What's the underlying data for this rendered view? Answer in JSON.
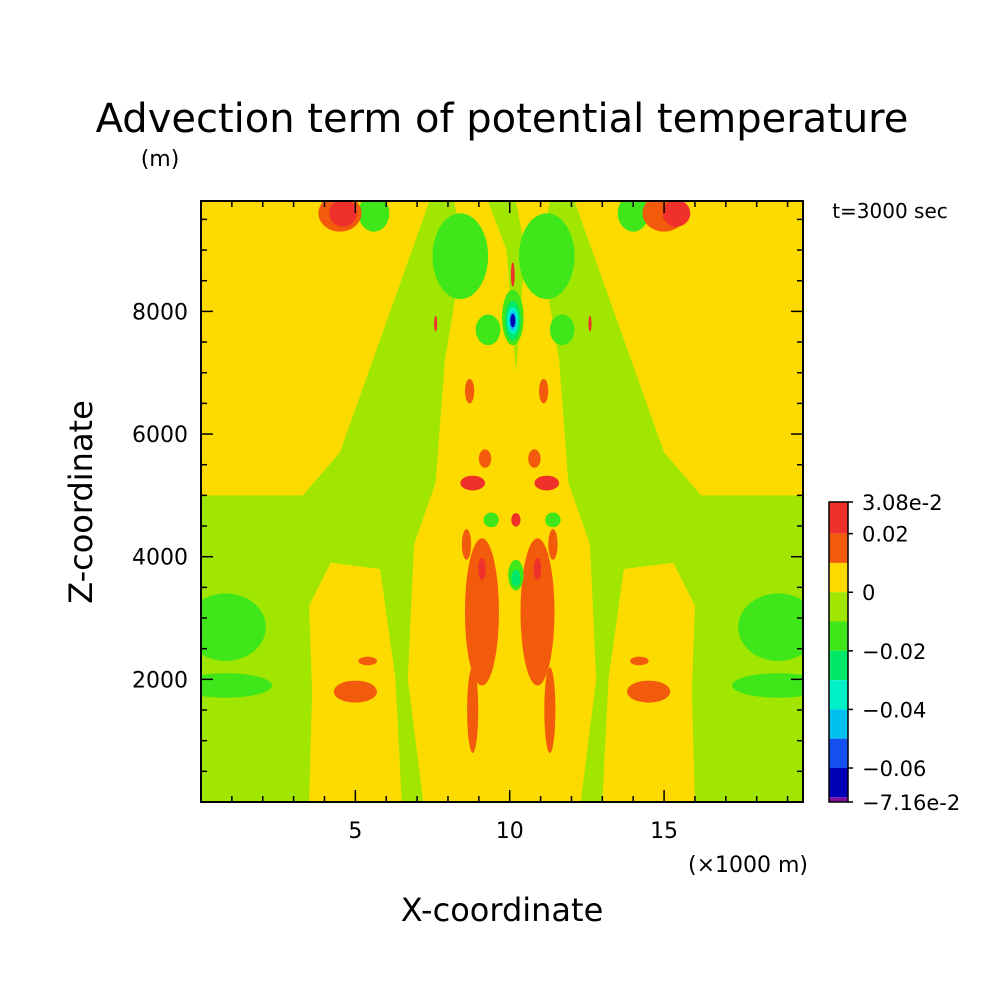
{
  "chart_data": {
    "type": "heatmap",
    "title": "Advection term of potential temperature",
    "xlabel": "X-coordinate",
    "ylabel": "Z-coordinate",
    "x_unit_label": "(×1000 m)",
    "y_unit_label": "(m)",
    "annotation": "t=3000 sec",
    "xlim": [
      0,
      19.5
    ],
    "ylim": [
      0,
      9800
    ],
    "x_ticks": [
      5,
      10,
      15
    ],
    "x_tick_labels": [
      "5",
      "10",
      "15"
    ],
    "y_ticks": [
      2000,
      4000,
      6000,
      8000
    ],
    "y_tick_labels": [
      "2000",
      "4000",
      "6000",
      "8000"
    ],
    "colorbar": {
      "max_label": "3.08e-2",
      "min_label": "−7.16e-2",
      "max": 0.0308,
      "min": -0.0716,
      "bins": [
        {
          "lo": 0.02,
          "hi": 0.0308,
          "color": "#f0302a"
        },
        {
          "lo": 0.01,
          "hi": 0.02,
          "color": "#f25a0c"
        },
        {
          "lo": 0.0,
          "hi": 0.01,
          "color": "#fedb00"
        },
        {
          "lo": -0.01,
          "hi": 0.0,
          "color": "#a0e600"
        },
        {
          "lo": -0.02,
          "hi": -0.01,
          "color": "#3ee61a"
        },
        {
          "lo": -0.03,
          "hi": -0.02,
          "color": "#00e868"
        },
        {
          "lo": -0.04,
          "hi": -0.03,
          "color": "#00f0c8"
        },
        {
          "lo": -0.05,
          "hi": -0.04,
          "color": "#00c0f0"
        },
        {
          "lo": -0.06,
          "hi": -0.05,
          "color": "#1450f0"
        },
        {
          "lo": -0.07,
          "hi": -0.06,
          "color": "#0000b4"
        },
        {
          "lo": -0.0716,
          "hi": -0.07,
          "color": "#8010a0"
        }
      ],
      "labels": [
        {
          "value": 0.0308,
          "text": "3.08e-2"
        },
        {
          "value": 0.02,
          "text": "0.02"
        },
        {
          "value": 0.0,
          "text": "0"
        },
        {
          "value": -0.02,
          "text": "−0.02"
        },
        {
          "value": -0.04,
          "text": "−0.04"
        },
        {
          "value": -0.06,
          "text": "−0.06"
        },
        {
          "value": -0.0716,
          "text": "−7.16e-2"
        }
      ]
    },
    "field_features": [
      {
        "kind": "background",
        "value": -0.005
      },
      {
        "kind": "poly",
        "value": 0.005,
        "pts": [
          [
            0,
            5000
          ],
          [
            3.3,
            5000
          ],
          [
            4.5,
            5700
          ],
          [
            7.4,
            9800
          ],
          [
            0,
            9800
          ]
        ]
      },
      {
        "kind": "poly",
        "value": 0.005,
        "pts": [
          [
            19.5,
            5000
          ],
          [
            16.2,
            5000
          ],
          [
            15,
            5700
          ],
          [
            12.1,
            9800
          ],
          [
            19.5,
            9800
          ]
        ]
      },
      {
        "kind": "poly",
        "value": 0.005,
        "pts": [
          [
            7.2,
            0
          ],
          [
            12.3,
            0
          ],
          [
            12.8,
            2000
          ],
          [
            12.6,
            4200
          ],
          [
            11.9,
            5200
          ],
          [
            11.6,
            7200
          ],
          [
            11,
            9000
          ],
          [
            11.3,
            9800
          ],
          [
            8.2,
            9800
          ],
          [
            8.5,
            9000
          ],
          [
            7.9,
            7200
          ],
          [
            7.6,
            5200
          ],
          [
            6.9,
            4200
          ],
          [
            6.7,
            2000
          ]
        ]
      },
      {
        "kind": "poly",
        "value": 0.005,
        "pts": [
          [
            3.5,
            0
          ],
          [
            6.5,
            0
          ],
          [
            6.3,
            2000
          ],
          [
            5.8,
            3800
          ],
          [
            4.2,
            3900
          ],
          [
            3.5,
            3200
          ],
          [
            3.6,
            1800
          ]
        ]
      },
      {
        "kind": "poly",
        "value": 0.005,
        "pts": [
          [
            16,
            0
          ],
          [
            13,
            0
          ],
          [
            13.2,
            2000
          ],
          [
            13.7,
            3800
          ],
          [
            15.3,
            3900
          ],
          [
            16,
            3200
          ],
          [
            15.9,
            1800
          ]
        ]
      },
      {
        "kind": "poly",
        "value": -0.005,
        "pts": [
          [
            9.3,
            9800
          ],
          [
            9.9,
            9000
          ],
          [
            10.2,
            7000
          ],
          [
            10.5,
            9000
          ],
          [
            10.2,
            9800
          ]
        ]
      },
      {
        "kind": "ell",
        "value": -0.015,
        "cx": 8.4,
        "cy": 8900,
        "rx": 0.9,
        "ry": 700
      },
      {
        "kind": "ell",
        "value": -0.015,
        "cx": 11.2,
        "cy": 8900,
        "rx": 0.9,
        "ry": 700
      },
      {
        "kind": "ell",
        "value": -0.015,
        "cx": 9.3,
        "cy": 7700,
        "rx": 0.4,
        "ry": 250
      },
      {
        "kind": "ell",
        "value": -0.015,
        "cx": 11.7,
        "cy": 7700,
        "rx": 0.4,
        "ry": 250
      },
      {
        "kind": "ell",
        "value": -0.015,
        "cx": 0.8,
        "cy": 2850,
        "rx": 1.3,
        "ry": 550
      },
      {
        "kind": "ell",
        "value": -0.015,
        "cx": 18.7,
        "cy": 2850,
        "rx": 1.3,
        "ry": 550
      },
      {
        "kind": "ell",
        "value": -0.015,
        "cx": 0.8,
        "cy": 1900,
        "rx": 1.5,
        "ry": 200
      },
      {
        "kind": "ell",
        "value": -0.015,
        "cx": 18.7,
        "cy": 1900,
        "rx": 1.5,
        "ry": 200
      },
      {
        "kind": "ell",
        "value": -0.015,
        "cx": 5.6,
        "cy": 9600,
        "rx": 0.5,
        "ry": 300
      },
      {
        "kind": "ell",
        "value": -0.015,
        "cx": 14,
        "cy": 9600,
        "rx": 0.5,
        "ry": 300
      },
      {
        "kind": "ell",
        "value": 0.015,
        "cx": 9.1,
        "cy": 3100,
        "rx": 0.55,
        "ry": 1200
      },
      {
        "kind": "ell",
        "value": 0.015,
        "cx": 10.9,
        "cy": 3100,
        "rx": 0.55,
        "ry": 1200
      },
      {
        "kind": "ell",
        "value": 0.015,
        "cx": 8.8,
        "cy": 1500,
        "rx": 0.18,
        "ry": 700
      },
      {
        "kind": "ell",
        "value": 0.015,
        "cx": 11.3,
        "cy": 1500,
        "rx": 0.18,
        "ry": 700
      },
      {
        "kind": "ell",
        "value": 0.015,
        "cx": 5,
        "cy": 1800,
        "rx": 0.7,
        "ry": 180
      },
      {
        "kind": "ell",
        "value": 0.015,
        "cx": 14.5,
        "cy": 1800,
        "rx": 0.7,
        "ry": 180
      },
      {
        "kind": "ell",
        "value": 0.015,
        "cx": 5.4,
        "cy": 2300,
        "rx": 0.3,
        "ry": 70
      },
      {
        "kind": "ell",
        "value": 0.015,
        "cx": 14.2,
        "cy": 2300,
        "rx": 0.3,
        "ry": 70
      },
      {
        "kind": "ell",
        "value": 0.015,
        "cx": 8.6,
        "cy": 4200,
        "rx": 0.15,
        "ry": 250
      },
      {
        "kind": "ell",
        "value": 0.015,
        "cx": 11.4,
        "cy": 4200,
        "rx": 0.15,
        "ry": 250
      },
      {
        "kind": "ell",
        "value": 0.015,
        "cx": 8.7,
        "cy": 6700,
        "rx": 0.15,
        "ry": 200
      },
      {
        "kind": "ell",
        "value": 0.015,
        "cx": 11.1,
        "cy": 6700,
        "rx": 0.15,
        "ry": 200
      },
      {
        "kind": "ell",
        "value": 0.015,
        "cx": 9.2,
        "cy": 5600,
        "rx": 0.2,
        "ry": 150
      },
      {
        "kind": "ell",
        "value": 0.015,
        "cx": 10.8,
        "cy": 5600,
        "rx": 0.2,
        "ry": 150
      },
      {
        "kind": "ell",
        "value": 0.025,
        "cx": 8.8,
        "cy": 5200,
        "rx": 0.4,
        "ry": 120
      },
      {
        "kind": "ell",
        "value": 0.025,
        "cx": 11.2,
        "cy": 5200,
        "rx": 0.4,
        "ry": 120
      },
      {
        "kind": "ell",
        "value": 0.025,
        "cx": 10.2,
        "cy": 4600,
        "rx": 0.15,
        "ry": 110
      },
      {
        "kind": "ell",
        "value": 0.025,
        "cx": 9.1,
        "cy": 3800,
        "rx": 0.12,
        "ry": 180
      },
      {
        "kind": "ell",
        "value": 0.025,
        "cx": 10.9,
        "cy": 3800,
        "rx": 0.12,
        "ry": 180
      },
      {
        "kind": "ell",
        "value": 0.025,
        "cx": 10.1,
        "cy": 8600,
        "rx": 0.06,
        "ry": 200
      },
      {
        "kind": "ell",
        "value": 0.025,
        "cx": 7.6,
        "cy": 7800,
        "rx": 0.05,
        "ry": 130
      },
      {
        "kind": "ell",
        "value": 0.025,
        "cx": 12.6,
        "cy": 7800,
        "rx": 0.05,
        "ry": 130
      },
      {
        "kind": "ell",
        "value": 0.015,
        "cx": 4.5,
        "cy": 9600,
        "rx": 0.7,
        "ry": 300
      },
      {
        "kind": "ell",
        "value": 0.015,
        "cx": 15,
        "cy": 9600,
        "rx": 0.7,
        "ry": 300
      },
      {
        "kind": "ell",
        "value": 0.025,
        "cx": 4.6,
        "cy": 9600,
        "rx": 0.45,
        "ry": 220
      },
      {
        "kind": "ell",
        "value": 0.025,
        "cx": 15.4,
        "cy": 9600,
        "rx": 0.45,
        "ry": 220
      },
      {
        "kind": "ell",
        "value": -0.015,
        "cx": 9.4,
        "cy": 4600,
        "rx": 0.25,
        "ry": 120
      },
      {
        "kind": "ell",
        "value": -0.015,
        "cx": 11.4,
        "cy": 4600,
        "rx": 0.25,
        "ry": 120
      },
      {
        "kind": "ell",
        "value": -0.015,
        "cx": 10.2,
        "cy": 3700,
        "rx": 0.25,
        "ry": 250
      },
      {
        "kind": "ell",
        "value": -0.025,
        "cx": 10.2,
        "cy": 3650,
        "rx": 0.15,
        "ry": 140
      },
      {
        "kind": "ell",
        "value": -0.015,
        "cx": 10.1,
        "cy": 7900,
        "rx": 0.35,
        "ry": 450
      },
      {
        "kind": "ell",
        "value": -0.025,
        "cx": 10.1,
        "cy": 7850,
        "rx": 0.25,
        "ry": 320
      },
      {
        "kind": "ell",
        "value": -0.035,
        "cx": 10.1,
        "cy": 7850,
        "rx": 0.18,
        "ry": 220
      },
      {
        "kind": "ell",
        "value": -0.045,
        "cx": 10.1,
        "cy": 7850,
        "rx": 0.12,
        "ry": 160
      },
      {
        "kind": "ell",
        "value": -0.065,
        "cx": 10.1,
        "cy": 7850,
        "rx": 0.08,
        "ry": 110
      }
    ]
  }
}
